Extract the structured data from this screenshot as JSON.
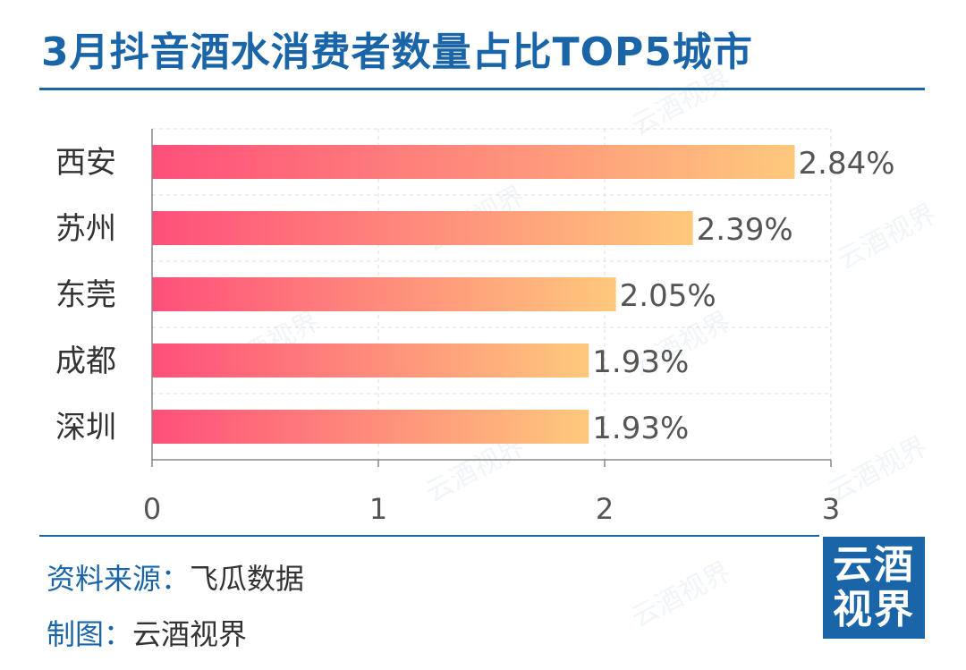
{
  "title": "3月抖音酒水消费者数量占比TOP5城市",
  "footer": {
    "source_label": "资料来源：",
    "source_value": "飞瓜数据",
    "maker_label": "制图：",
    "maker_value": "云酒视界"
  },
  "logo": {
    "line1": "云酒",
    "line2": "视界"
  },
  "watermark_text": "云酒视界",
  "colors": {
    "brand": "#1a65a8",
    "bar_start": "#fe4f7a",
    "bar_end": "#fec97c"
  },
  "chart_data": {
    "type": "bar",
    "orientation": "horizontal",
    "categories": [
      "西安",
      "苏州",
      "东莞",
      "成都",
      "深圳"
    ],
    "values": [
      2.84,
      2.39,
      2.05,
      1.93,
      1.93
    ],
    "value_labels": [
      "2.84%",
      "2.39%",
      "2.05%",
      "1.93%",
      "1.93%"
    ],
    "xlim": [
      0,
      3
    ],
    "xticks": [
      "0",
      "1",
      "2",
      "3"
    ],
    "grid": true
  }
}
